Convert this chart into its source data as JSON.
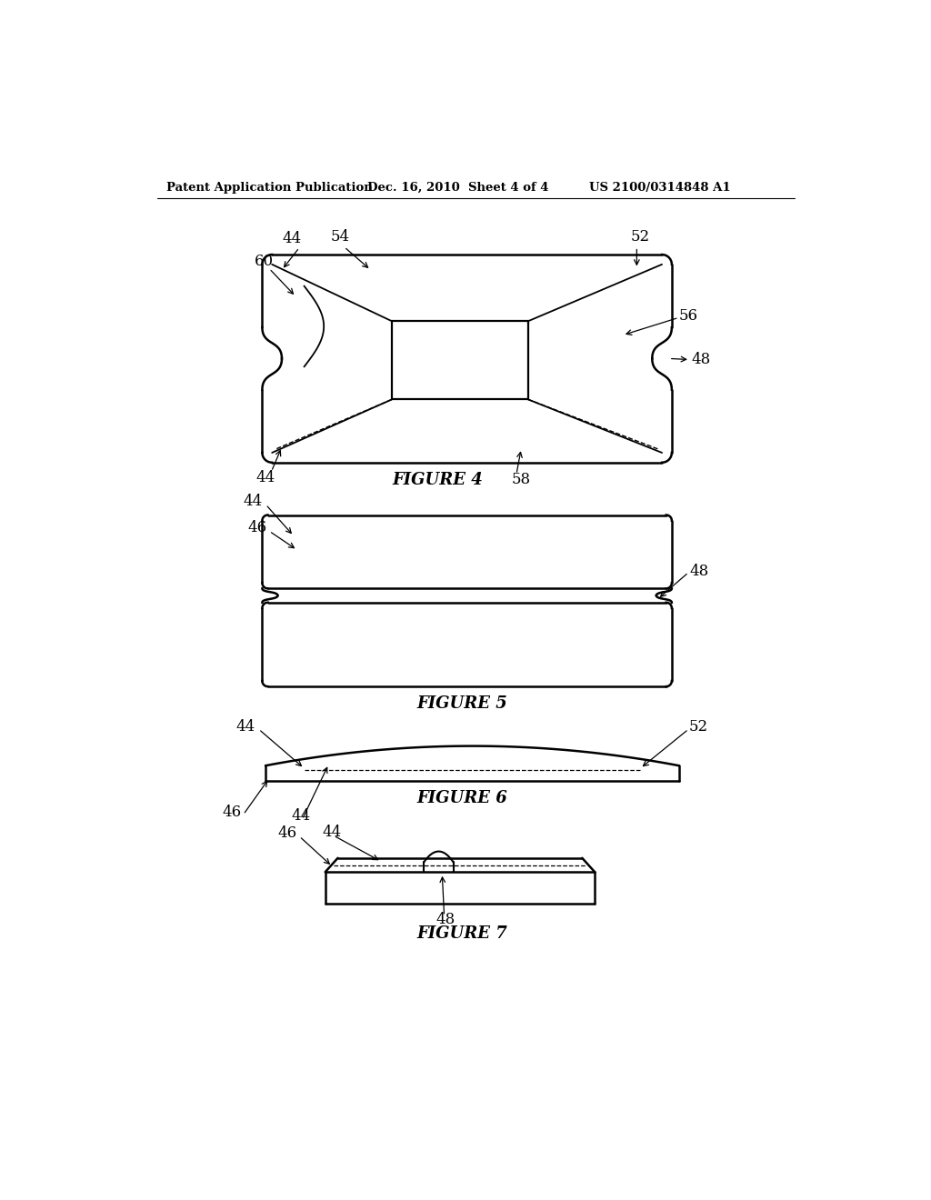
{
  "header_left": "Patent Application Publication",
  "header_mid": "Dec. 16, 2010  Sheet 4 of 4",
  "header_right": "US 2100/0314848 A1",
  "bg_color": "#ffffff",
  "line_color": "#000000",
  "fig4_label": "FIGURE 4",
  "fig5_label": "FIGURE 5",
  "fig6_label": "FIGURE 6",
  "fig7_label": "FIGURE 7"
}
